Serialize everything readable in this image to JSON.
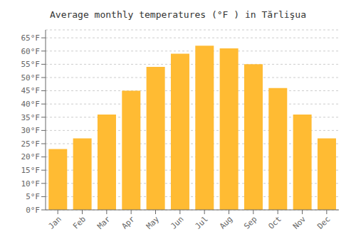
{
  "chart_data": {
    "type": "bar",
    "title": "Average monthly temperatures (°F ) in Tărlişua",
    "categories": [
      "Jan",
      "Feb",
      "Mar",
      "Apr",
      "May",
      "Jun",
      "Jul",
      "Aug",
      "Sep",
      "Oct",
      "Nov",
      "Dec"
    ],
    "values": [
      23,
      27,
      36,
      45,
      54,
      59,
      62,
      61,
      55,
      46,
      36,
      27
    ],
    "color": "#FFBB33",
    "ylim": [
      0,
      68
    ],
    "yticks": [
      {
        "value": 0,
        "label": "0°F"
      },
      {
        "value": 5,
        "label": "5°F"
      },
      {
        "value": 10,
        "label": "10°F"
      },
      {
        "value": 15,
        "label": "15°F"
      },
      {
        "value": 20,
        "label": "20°F"
      },
      {
        "value": 25,
        "label": "25°F"
      },
      {
        "value": 30,
        "label": "30°F"
      },
      {
        "value": 35,
        "label": "35°F"
      },
      {
        "value": 40,
        "label": "40°F"
      },
      {
        "value": 45,
        "label": "45°F"
      },
      {
        "value": 50,
        "label": "50°F"
      },
      {
        "value": 55,
        "label": "55°F"
      },
      {
        "value": 60,
        "label": "60°F"
      },
      {
        "value": 65,
        "label": "65°F"
      }
    ],
    "grid": true
  }
}
